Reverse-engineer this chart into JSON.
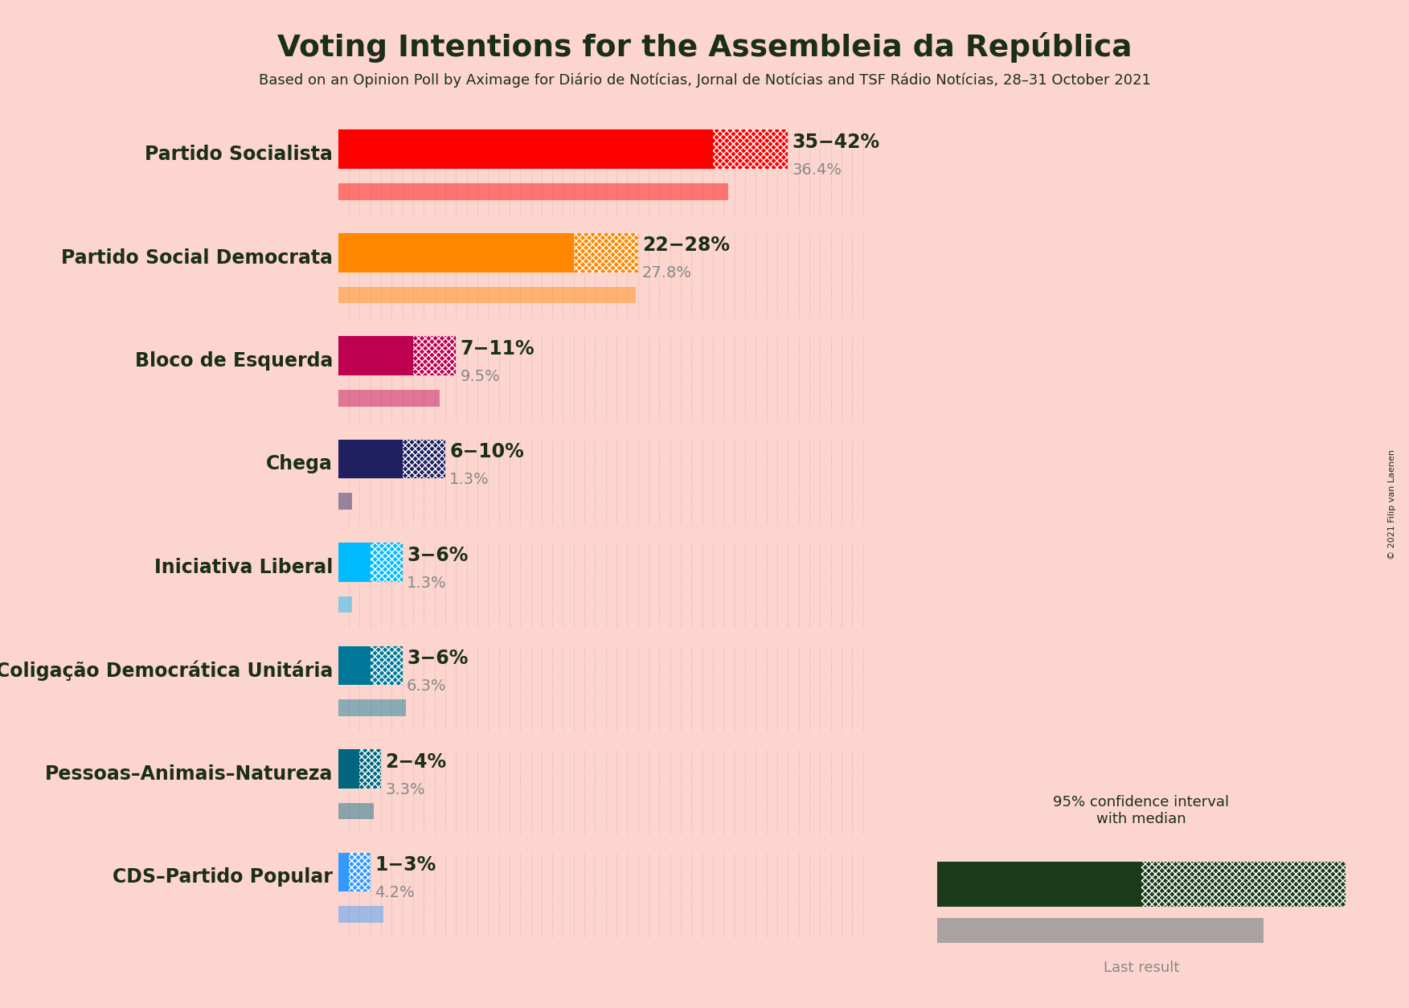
{
  "title": "Voting Intentions for the Assembleia da República",
  "subtitle": "Based on an Opinion Poll by Aximage for Diário de Notícias, Jornal de Notícias and TSF Rádio Notícias, 28–31 October 2021",
  "copyright": "© 2021 Filip van Laenen",
  "background_color": "#fcd5ce",
  "parties": [
    {
      "name": "Partido Socialista",
      "ci_low": 35,
      "ci_high": 42,
      "last_result": 36.4,
      "color": "#FF0000",
      "label": "35−42%",
      "sublabel": "36.4%"
    },
    {
      "name": "Partido Social Democrata",
      "ci_low": 22,
      "ci_high": 28,
      "last_result": 27.8,
      "color": "#FF8800",
      "label": "22−28%",
      "sublabel": "27.8%"
    },
    {
      "name": "Bloco de Esquerda",
      "ci_low": 7,
      "ci_high": 11,
      "last_result": 9.5,
      "color": "#BE0050",
      "label": "7−11%",
      "sublabel": "9.5%"
    },
    {
      "name": "Chega",
      "ci_low": 6,
      "ci_high": 10,
      "last_result": 1.3,
      "color": "#202060",
      "label": "6−10%",
      "sublabel": "1.3%"
    },
    {
      "name": "Iniciativa Liberal",
      "ci_low": 3,
      "ci_high": 6,
      "last_result": 1.3,
      "color": "#00BBFF",
      "label": "3−6%",
      "sublabel": "1.3%"
    },
    {
      "name": "Coligação Democrática Unitária",
      "ci_low": 3,
      "ci_high": 6,
      "last_result": 6.3,
      "color": "#007799",
      "label": "3−6%",
      "sublabel": "6.3%"
    },
    {
      "name": "Pessoas–Animais–Natureza",
      "ci_low": 2,
      "ci_high": 4,
      "last_result": 3.3,
      "color": "#006680",
      "label": "2−4%",
      "sublabel": "3.3%"
    },
    {
      "name": "CDS–Partido Popular",
      "ci_low": 1,
      "ci_high": 3,
      "last_result": 4.2,
      "color": "#3399FF",
      "label": "1−3%",
      "sublabel": "4.2%"
    }
  ],
  "xlim_max": 50,
  "dotted_line_color": "#888888",
  "last_result_alpha": 0.45,
  "title_color": "#1a2e1a",
  "subtitle_color": "#1a2e1a",
  "party_name_color": "#1a2e1a",
  "label_color": "#1a2e1a",
  "sublabel_color": "#888888",
  "legend_bar_color": "#1a3a1a"
}
